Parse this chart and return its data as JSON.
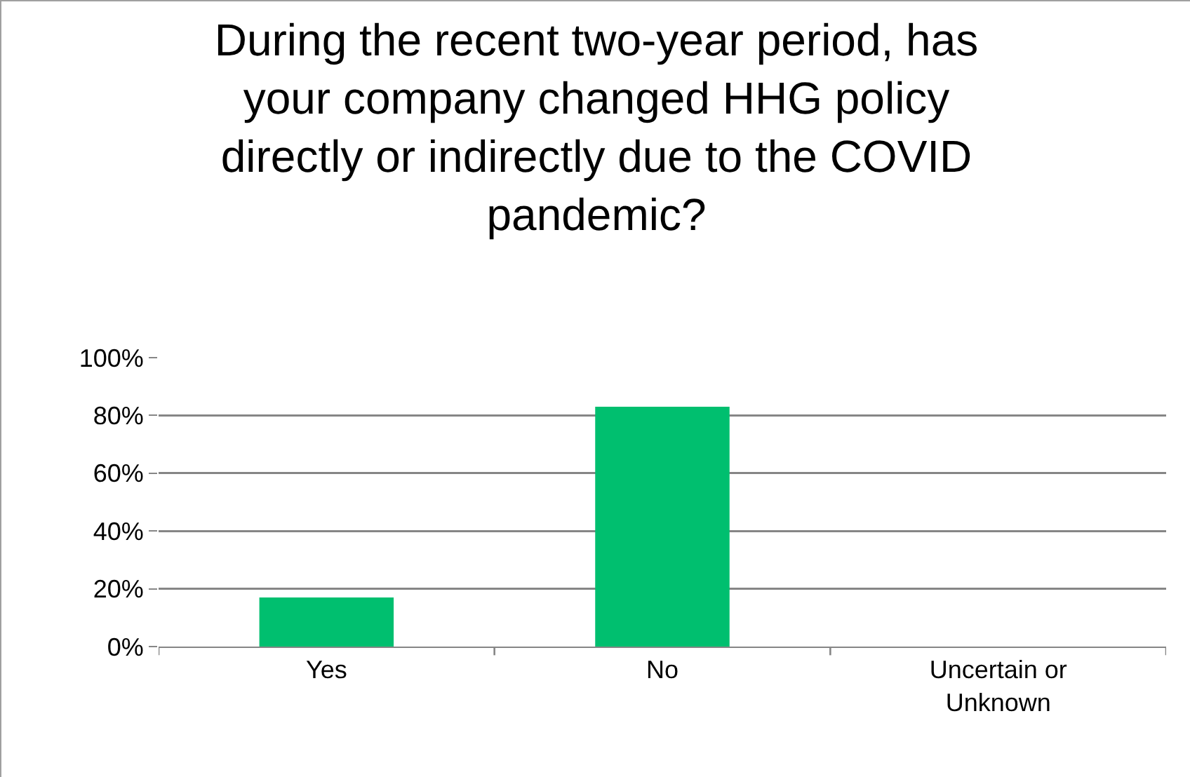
{
  "chart_data": {
    "type": "bar",
    "title": "During the recent two-year period, has your company changed HHG policy directly or indirectly due to the COVID pandemic?",
    "categories": [
      "Yes",
      "No",
      "Uncertain or Unknown"
    ],
    "values": [
      17,
      83,
      0
    ],
    "color": "#00bf6f",
    "ylim": [
      0,
      100
    ],
    "yticks": [
      {
        "value": 0,
        "label": "0%"
      },
      {
        "value": 20,
        "label": "20%"
      },
      {
        "value": 40,
        "label": "40%"
      },
      {
        "value": 60,
        "label": "60%"
      },
      {
        "value": 80,
        "label": "80%"
      },
      {
        "value": 100,
        "label": "100%"
      }
    ],
    "grid": "y"
  }
}
